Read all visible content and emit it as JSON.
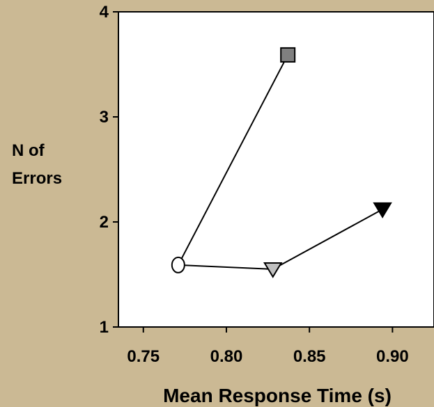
{
  "chart_data": {
    "type": "scatter",
    "xlabel": "Mean Response Time (s)",
    "ylabel_lines": [
      "N of",
      "Errors"
    ],
    "xlim": [
      0.735,
      0.925
    ],
    "ylim": [
      1,
      4
    ],
    "x_ticks": [
      0.75,
      0.8,
      0.85,
      0.9
    ],
    "x_tick_labels": [
      "0.75",
      "0.80",
      "0.85",
      "0.90"
    ],
    "y_ticks": [
      1,
      2,
      3,
      4
    ],
    "y_tick_labels": [
      "1",
      "2",
      "3",
      "4"
    ],
    "grid": false,
    "background_color": "#cbb994",
    "plot_color": "#ffffff",
    "points": [
      {
        "id": "circle",
        "marker": "circle",
        "x": 0.771,
        "y": 1.59,
        "fill": "#ffffff"
      },
      {
        "id": "square",
        "marker": "square",
        "x": 0.837,
        "y": 3.59,
        "fill": "#808080"
      },
      {
        "id": "down-triangle-gray",
        "marker": "triangle-down",
        "x": 0.828,
        "y": 1.55,
        "fill": "#c0c0c0"
      },
      {
        "id": "down-triangle-black",
        "marker": "triangle-down",
        "x": 0.894,
        "y": 2.12,
        "fill": "#000000"
      }
    ],
    "segments": [
      [
        "circle",
        "square"
      ],
      [
        "circle",
        "down-triangle-gray"
      ],
      [
        "down-triangle-gray",
        "down-triangle-black"
      ]
    ]
  }
}
